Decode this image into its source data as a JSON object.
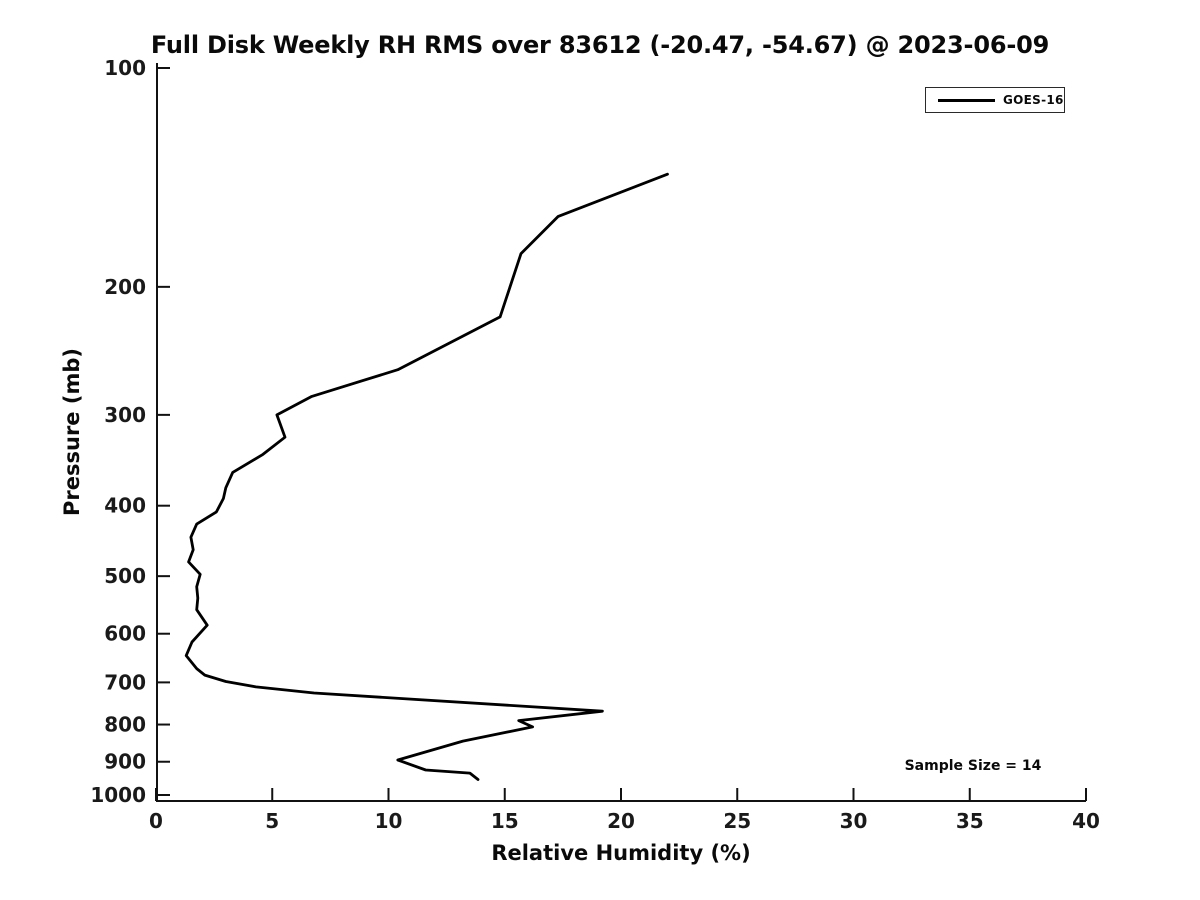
{
  "title": "Full Disk Weekly RH RMS over 83612 (-20.47, -54.67) @ 2023-06-09",
  "legend": {
    "label": "GOES-16"
  },
  "annotation": {
    "sample_size_text": "Sample Size = 14"
  },
  "chart_data": {
    "type": "line",
    "title": "Full Disk Weekly RH RMS over 83612 (-20.47, -54.67) @ 2023-06-09",
    "xlabel": "Relative Humidity (%)",
    "ylabel": "Pressure (mb)",
    "xlim": [
      0,
      40
    ],
    "ylim": [
      100,
      1000
    ],
    "x_ticks": [
      0,
      5,
      10,
      15,
      20,
      25,
      30,
      35,
      40
    ],
    "y_ticks": [
      100,
      200,
      300,
      400,
      500,
      600,
      700,
      800,
      900,
      1000
    ],
    "y_scale": "log",
    "y_inverted": true,
    "grid": false,
    "legend_position": "top-right",
    "legend_entries": [
      "GOES-16"
    ],
    "annotations": [
      {
        "text": "Sample Size = 14",
        "x_rh": 35.1,
        "y_pressure": 910
      }
    ],
    "series": [
      {
        "name": "GOES-16",
        "color": "#000000",
        "points_pressure_rh": [
          [
            140,
            22.0
          ],
          [
            160,
            17.3
          ],
          [
            180,
            15.7
          ],
          [
            220,
            14.8
          ],
          [
            260,
            10.4
          ],
          [
            283,
            6.7
          ],
          [
            300,
            5.2
          ],
          [
            322,
            5.55
          ],
          [
            340,
            4.6
          ],
          [
            360,
            3.3
          ],
          [
            378,
            3.0
          ],
          [
            391,
            2.9
          ],
          [
            408,
            2.6
          ],
          [
            424,
            1.75
          ],
          [
            442,
            1.5
          ],
          [
            460,
            1.6
          ],
          [
            478,
            1.4
          ],
          [
            497,
            1.9
          ],
          [
            517,
            1.75
          ],
          [
            536,
            1.8
          ],
          [
            556,
            1.75
          ],
          [
            584,
            2.2
          ],
          [
            616,
            1.55
          ],
          [
            643,
            1.3
          ],
          [
            670,
            1.75
          ],
          [
            684,
            2.1
          ],
          [
            698,
            3.0
          ],
          [
            710,
            4.3
          ],
          [
            724,
            6.8
          ],
          [
            767,
            19.2
          ],
          [
            790,
            15.6
          ],
          [
            806,
            16.2
          ],
          [
            843,
            13.2
          ],
          [
            895,
            10.4
          ],
          [
            924,
            11.6
          ],
          [
            933,
            13.5
          ],
          [
            952,
            13.85
          ]
        ]
      }
    ]
  }
}
